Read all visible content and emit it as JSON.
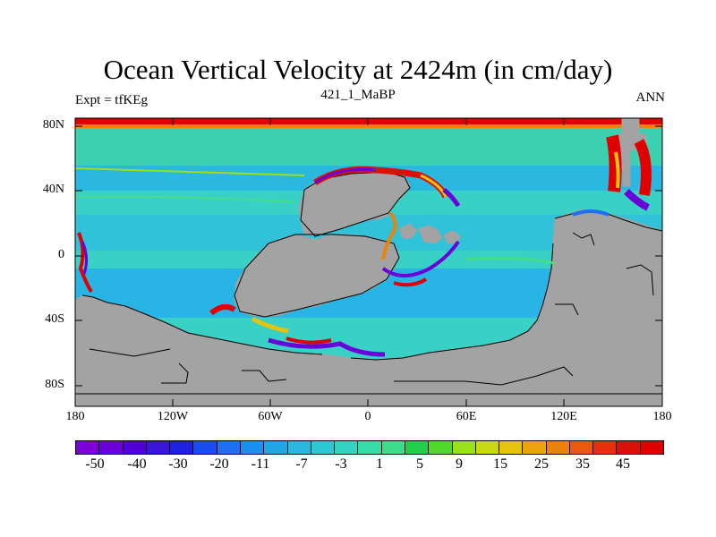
{
  "title": "Ocean Vertical Velocity at 2424m (in cm/day)",
  "left_subtitle": "Expt = tfKEg",
  "center_subtitle": "421_1_MaBP",
  "right_subtitle": "ANN",
  "axes": {
    "y_ticks": [
      "80N",
      "40N",
      "0",
      "40S",
      "80S"
    ],
    "x_ticks": [
      "180",
      "120W",
      "60W",
      "0",
      "60E",
      "120E",
      "180"
    ]
  },
  "colorbar": {
    "labels": [
      "-50",
      "-40",
      "-30",
      "-20",
      "-11",
      "-7",
      "-3",
      "1",
      "5",
      "9",
      "15",
      "25",
      "35",
      "45"
    ],
    "colors": [
      "#7a00d6",
      "#6a00d8",
      "#4f00d6",
      "#3a14d8",
      "#2020e0",
      "#1a4bef",
      "#1e6ff2",
      "#1c8ff0",
      "#21a6e6",
      "#29b8df",
      "#2ec8d4",
      "#34d5c0",
      "#38dca6",
      "#3cdc8a",
      "#22cf4a",
      "#50d82a",
      "#9ce01a",
      "#c8d812",
      "#e6c40e",
      "#eba40e",
      "#ec820e",
      "#ea5a0e",
      "#e4300c",
      "#d8120a",
      "#e00000"
    ]
  },
  "map_colors": {
    "land": "#a3a3a3",
    "ocean_base": "#39d0c6",
    "ocean_cyan": "#22b2e6",
    "ocean_green": "#45dd8a",
    "strong_up": "#e00000",
    "strong_down": "#6a00d8"
  }
}
